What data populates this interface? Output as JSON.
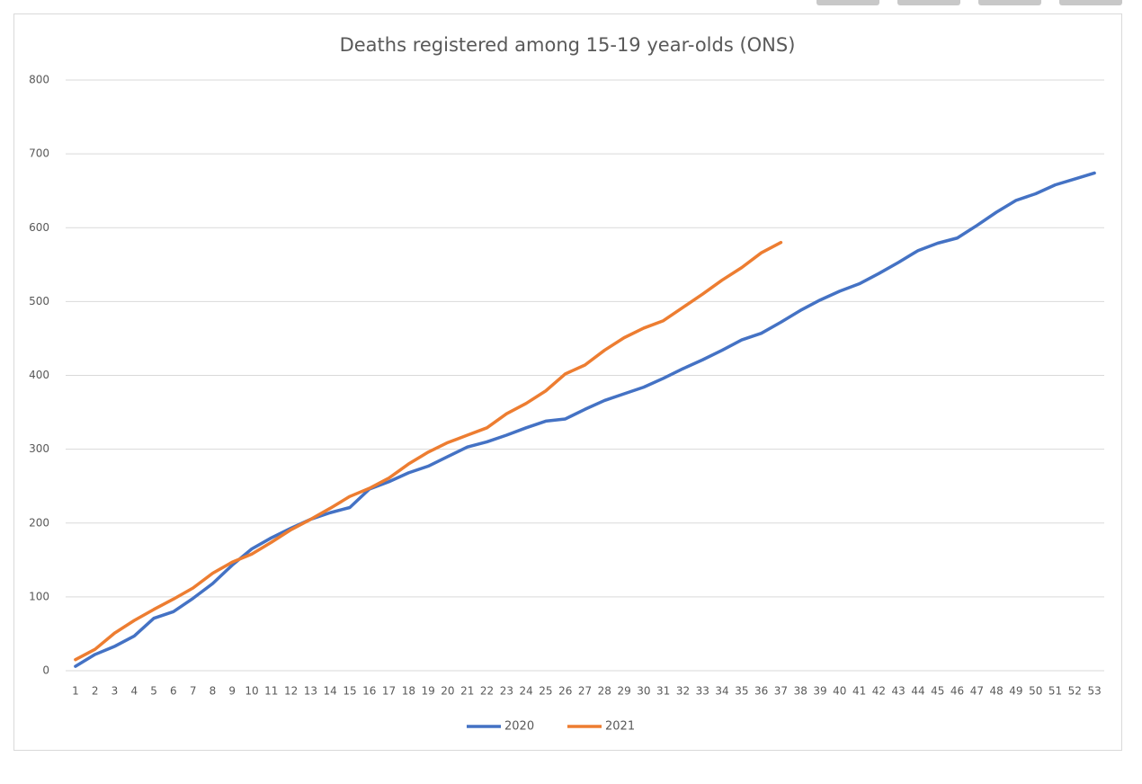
{
  "chart_data": {
    "type": "line",
    "title": "Deaths registered among 15-19 year-olds (ONS)",
    "categories": [
      "1",
      "2",
      "3",
      "4",
      "5",
      "6",
      "7",
      "8",
      "9",
      "10",
      "11",
      "12",
      "13",
      "14",
      "15",
      "16",
      "17",
      "18",
      "19",
      "20",
      "21",
      "22",
      "23",
      "24",
      "25",
      "26",
      "27",
      "28",
      "29",
      "30",
      "31",
      "32",
      "33",
      "34",
      "35",
      "36",
      "37",
      "38",
      "39",
      "40",
      "41",
      "42",
      "43",
      "44",
      "45",
      "46",
      "47",
      "48",
      "49",
      "50",
      "51",
      "52",
      "53"
    ],
    "series": [
      {
        "name": "2020",
        "color": "#4472c4",
        "values": [
          6,
          22,
          33,
          47,
          71,
          80,
          98,
          118,
          143,
          165,
          180,
          193,
          205,
          214,
          221,
          246,
          256,
          268,
          277,
          290,
          303,
          310,
          319,
          329,
          338,
          341,
          354,
          366,
          375,
          384,
          396,
          409,
          421,
          434,
          448,
          457,
          472,
          488,
          502,
          514,
          524,
          538,
          553,
          569,
          579,
          586,
          603,
          621,
          637,
          646,
          658,
          666,
          674
        ]
      },
      {
        "name": "2021",
        "color": "#ed7d31",
        "values": [
          15,
          29,
          51,
          68,
          83,
          97,
          112,
          132,
          147,
          158,
          174,
          191,
          205,
          220,
          236,
          247,
          261,
          280,
          296,
          309,
          319,
          329,
          348,
          362,
          379,
          402,
          414,
          434,
          451,
          464,
          474,
          492,
          510,
          529,
          546,
          566,
          580,
          null,
          null,
          null,
          null,
          null,
          null,
          null,
          null,
          null,
          null,
          null,
          null,
          null,
          null,
          null,
          null
        ]
      }
    ],
    "ylim": [
      0,
      800
    ],
    "yticks": [
      0,
      100,
      200,
      300,
      400,
      500,
      600,
      700,
      800
    ],
    "grid": true,
    "legend": "bottom"
  }
}
